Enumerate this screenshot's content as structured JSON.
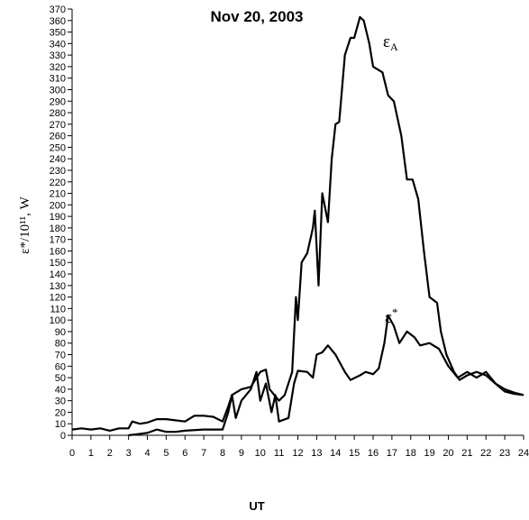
{
  "chart_data": {
    "type": "line",
    "title": "Nov 20, 2003",
    "xlabel": "UT",
    "ylabel": "ε*/10¹¹, W",
    "xlim": [
      0,
      24
    ],
    "ylim": [
      0,
      370
    ],
    "xticks": [
      0,
      1,
      2,
      3,
      4,
      5,
      6,
      7,
      8,
      9,
      10,
      11,
      12,
      13,
      14,
      15,
      16,
      17,
      18,
      19,
      20,
      21,
      22,
      23,
      24
    ],
    "yticks": [
      0,
      10,
      20,
      30,
      40,
      50,
      60,
      70,
      80,
      90,
      100,
      110,
      120,
      130,
      140,
      150,
      160,
      170,
      180,
      190,
      200,
      210,
      220,
      230,
      240,
      250,
      260,
      270,
      280,
      290,
      300,
      310,
      320,
      330,
      340,
      350,
      360,
      370
    ],
    "annotations": [
      {
        "text": "ε",
        "sub": "A"
      },
      {
        "text": "ε",
        "sup": "*"
      }
    ],
    "series": [
      {
        "color": "#000000",
        "x": [
          0,
          0.5,
          1,
          1.5,
          2,
          2.5,
          3,
          3.2,
          3.6,
          4,
          4.5,
          5,
          5.5,
          6,
          6.5,
          7,
          7.5,
          8,
          8.3,
          8.5,
          9,
          9.5,
          10,
          10.3,
          10.5,
          11,
          11.3,
          11.7,
          11.9,
          12,
          12.2,
          12.5,
          12.8,
          12.9,
          13.1,
          13.3,
          13.6,
          13.8,
          14,
          14.2,
          14.5,
          14.8,
          15,
          15.3,
          15.5,
          15.8,
          16,
          16.5,
          16.8,
          17.1,
          17.5,
          17.8,
          18.1,
          18.4,
          18.7,
          19,
          19.4,
          19.6,
          19.9,
          20.3,
          20.6,
          21,
          21.5,
          22,
          22.5,
          23,
          23.5,
          24
        ],
        "values": [
          5,
          6,
          5,
          6,
          4,
          6,
          6,
          12,
          10,
          11,
          14,
          14,
          13,
          12,
          17,
          17,
          16,
          12,
          25,
          35,
          40,
          42,
          55,
          57,
          40,
          30,
          35,
          55,
          120,
          100,
          150,
          158,
          180,
          195,
          130,
          210,
          185,
          240,
          270,
          272,
          330,
          345,
          345,
          363,
          360,
          340,
          320,
          315,
          295,
          290,
          260,
          222,
          222,
          205,
          160,
          120,
          115,
          90,
          70,
          55,
          48,
          52,
          55,
          52,
          45,
          40,
          37,
          35
        ]
      },
      {
        "color": "#000000",
        "x": [
          3,
          3.5,
          4,
          4.5,
          5,
          5.5,
          6,
          7,
          8,
          8.3,
          8.5,
          8.7,
          9,
          9.5,
          9.8,
          10,
          10.3,
          10.6,
          10.8,
          11,
          11.5,
          11.8,
          12,
          12.5,
          12.8,
          13,
          13.3,
          13.6,
          14,
          14.5,
          14.8,
          15.3,
          15.6,
          16,
          16.3,
          16.6,
          16.8,
          17.1,
          17.4,
          17.8,
          18.2,
          18.5,
          19,
          19.5,
          20,
          20.5,
          21,
          21.5,
          22,
          22.5,
          23,
          23.5,
          24
        ],
        "values": [
          0,
          1,
          2,
          5,
          3,
          3,
          4,
          5,
          5,
          20,
          35,
          15,
          30,
          40,
          55,
          30,
          45,
          20,
          35,
          12,
          15,
          45,
          56,
          55,
          50,
          70,
          72,
          78,
          70,
          55,
          48,
          52,
          55,
          53,
          58,
          80,
          104,
          95,
          80,
          90,
          85,
          78,
          80,
          75,
          60,
          50,
          55,
          50,
          55,
          45,
          38,
          36,
          35
        ]
      }
    ]
  }
}
